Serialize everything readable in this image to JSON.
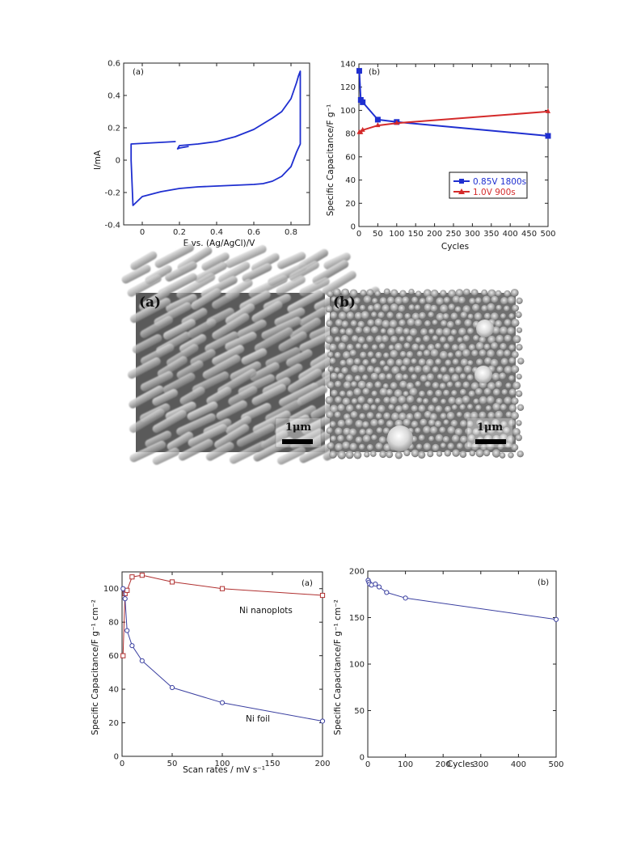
{
  "chart_data": [
    {
      "id": "cv",
      "type": "line",
      "panel_label": "(a)",
      "xlabel": "E vs. (Ag/AgCl)/V",
      "ylabel": "I/mA",
      "xlim": [
        -0.1,
        0.9
      ],
      "ylim": [
        -0.4,
        0.6
      ],
      "xticks": [
        0,
        0.2,
        0.4,
        0.6,
        0.8
      ],
      "xtick_labels": [
        "0",
        "0.2",
        "0.4",
        "0.6",
        "0.8"
      ],
      "yticks": [
        -0.4,
        -0.2,
        0,
        0.2,
        0.4,
        0.6
      ],
      "ytick_labels": [
        "-0.4",
        "-0.2",
        "0",
        "0.2",
        "0.4",
        "0.6"
      ],
      "color": "#1f2fd0",
      "series": [
        {
          "x": [
            0.18,
            -0.06,
            -0.06,
            -0.05,
            0.0,
            0.1,
            0.2,
            0.3,
            0.4,
            0.5,
            0.6,
            0.65,
            0.7,
            0.75,
            0.8,
            0.83,
            0.85,
            0.85,
            0.84,
            0.83,
            0.8,
            0.75,
            0.7,
            0.6,
            0.5,
            0.4,
            0.3,
            0.2,
            0.19,
            0.2,
            0.25
          ],
          "y": [
            0.115,
            0.1,
            0.0,
            -0.28,
            -0.225,
            -0.195,
            -0.175,
            -0.165,
            -0.16,
            -0.155,
            -0.15,
            -0.145,
            -0.13,
            -0.1,
            -0.04,
            0.05,
            0.1,
            0.55,
            0.52,
            0.48,
            0.38,
            0.3,
            0.26,
            0.19,
            0.145,
            0.115,
            0.1,
            0.09,
            0.07,
            0.075,
            0.085
          ]
        }
      ]
    },
    {
      "id": "cycling-a",
      "type": "line",
      "panel_label": "(b)",
      "xlabel": "Cycles",
      "ylabel": "Specific Capacitance/F g⁻¹",
      "xlim": [
        0,
        500
      ],
      "ylim": [
        0,
        140
      ],
      "xticks": [
        0,
        50,
        100,
        150,
        200,
        250,
        300,
        350,
        400,
        450,
        500
      ],
      "xtick_labels": [
        "0",
        "50",
        "100",
        "150",
        "200",
        "250",
        "300",
        "350",
        "400",
        "450",
        "500"
      ],
      "yticks": [
        0,
        20,
        40,
        60,
        80,
        100,
        120,
        140
      ],
      "ytick_labels": [
        "0",
        "20",
        "40",
        "60",
        "80",
        "100",
        "120",
        "140"
      ],
      "legend_position": "lower-right",
      "series": [
        {
          "name": "0.85V 1800s",
          "color": "#1f2fd0",
          "marker": "square",
          "x": [
            1,
            5,
            10,
            50,
            100,
            500
          ],
          "y": [
            134,
            109,
            107,
            92,
            90,
            78
          ]
        },
        {
          "name": "1.0V 900s",
          "color": "#d42a2a",
          "marker": "triangle",
          "x": [
            1,
            5,
            10,
            50,
            100,
            500
          ],
          "y": [
            81,
            81,
            83,
            87,
            89,
            99
          ]
        }
      ]
    },
    {
      "id": "rate",
      "type": "line",
      "panel_label": "(a)",
      "xlabel": "Scan rates / mV s⁻¹",
      "ylabel": "Specific Capacitance/F g⁻¹ cm⁻²",
      "xlim": [
        0,
        200
      ],
      "ylim": [
        0,
        110
      ],
      "xticks": [
        0,
        50,
        100,
        150,
        200
      ],
      "xtick_labels": [
        "0",
        "50",
        "100",
        "150",
        "200"
      ],
      "yticks": [
        0,
        20,
        40,
        60,
        80,
        100
      ],
      "ytick_labels": [
        "0",
        "20",
        "40",
        "60",
        "80",
        "100"
      ],
      "series": [
        {
          "name": "Ni nanoplots",
          "color": "#b03030",
          "marker": "square",
          "x": [
            1,
            3,
            5,
            10,
            20,
            50,
            100,
            200
          ],
          "y": [
            60,
            97,
            99,
            107,
            108,
            104,
            100,
            96
          ]
        },
        {
          "name": "Ni foil",
          "color": "#3a3fa0",
          "marker": "circle",
          "x": [
            1,
            3,
            5,
            10,
            20,
            50,
            100,
            200
          ],
          "y": [
            100,
            94,
            75,
            66,
            57,
            41,
            32,
            21
          ]
        }
      ],
      "annotations": [
        "Ni nanoplots",
        "Ni foil"
      ]
    },
    {
      "id": "cycling-b",
      "type": "line",
      "panel_label": "(b)",
      "xlabel": "Cycles",
      "ylabel": "Specific Capacitance/F g⁻¹ cm⁻²",
      "xlim": [
        0,
        500
      ],
      "ylim": [
        0,
        200
      ],
      "xticks": [
        0,
        100,
        200,
        300,
        400,
        500
      ],
      "xtick_labels": [
        "0",
        "100",
        "200",
        "300",
        "400",
        "500"
      ],
      "yticks": [
        0,
        50,
        100,
        150,
        200
      ],
      "ytick_labels": [
        "0",
        "50",
        "100",
        "150",
        "200"
      ],
      "series": [
        {
          "color": "#3a3fa0",
          "marker": "circle",
          "x": [
            1,
            3,
            5,
            10,
            20,
            30,
            50,
            100,
            500
          ],
          "y": [
            190,
            188,
            186,
            185,
            186,
            183,
            177,
            171,
            148
          ]
        }
      ]
    }
  ],
  "sem_images": [
    {
      "label": "(a)",
      "scale_label": "1μm",
      "morphology": "nanorods"
    },
    {
      "label": "(b)",
      "scale_label": "1μm",
      "morphology": "nanoparticles"
    }
  ]
}
